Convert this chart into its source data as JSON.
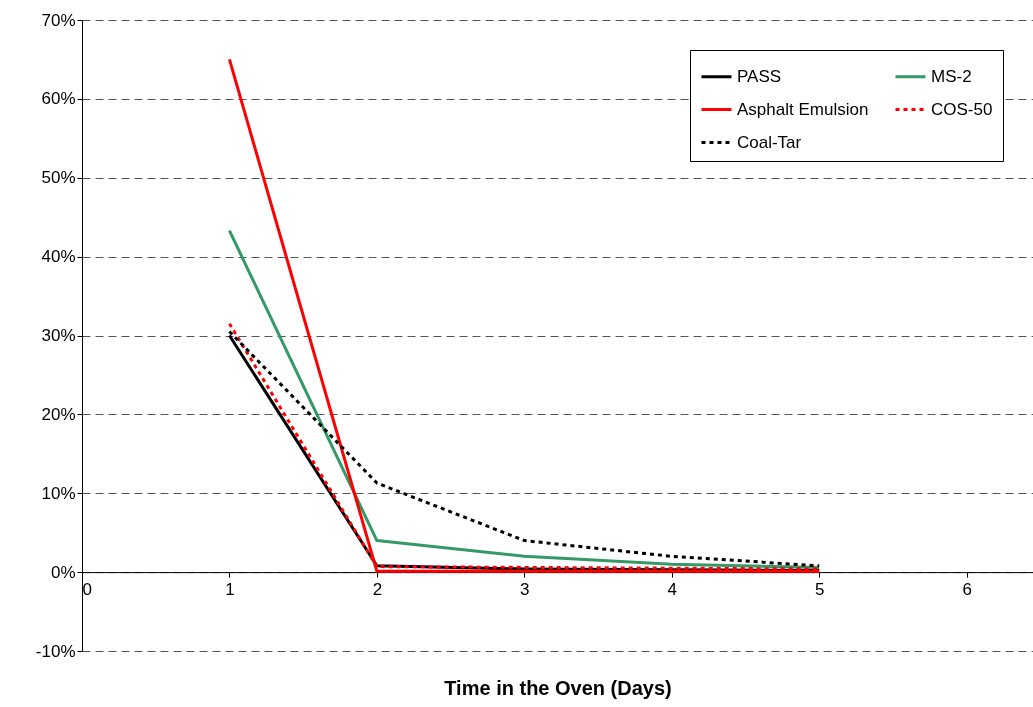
{
  "chart_data": {
    "type": "line",
    "xlabel": "Time in the Oven (Days)",
    "x": [
      1,
      2,
      3,
      4,
      5
    ],
    "series": [
      {
        "name": "PASS",
        "color": "#000000",
        "line_style": "solid",
        "values": [
          30,
          0.8,
          0.4,
          0.3,
          0.2
        ]
      },
      {
        "name": "MS-2",
        "color": "#339966",
        "line_style": "solid",
        "values": [
          43.3,
          4,
          2,
          1,
          0.6
        ]
      },
      {
        "name": "Asphalt Emulsion",
        "color": "#ff0000",
        "line_style": "solid",
        "values": [
          65,
          0.1,
          0.1,
          0.1,
          0.1
        ]
      },
      {
        "name": "COS-50",
        "color": "#ff0000",
        "line_style": "dotted",
        "values": [
          31.5,
          0.7,
          0.6,
          0.5,
          0.4
        ]
      },
      {
        "name": "Coal-Tar",
        "color": "#000000",
        "line_style": "dotted",
        "values": [
          30.5,
          11.3,
          4,
          2,
          0.8
        ]
      }
    ],
    "xlim": [
      0,
      6.45
    ],
    "xticks": [
      0,
      1,
      2,
      3,
      4,
      5,
      6
    ],
    "ylim": [
      -10,
      70
    ],
    "yticks": [
      {
        "value": -10,
        "label": "-10%"
      },
      {
        "value": 0,
        "label": "0%"
      },
      {
        "value": 10,
        "label": "10%"
      },
      {
        "value": 20,
        "label": "20%"
      },
      {
        "value": 30,
        "label": "30%"
      },
      {
        "value": 40,
        "label": "40%"
      },
      {
        "value": 50,
        "label": "50%"
      },
      {
        "value": 60,
        "label": "60%"
      },
      {
        "value": 70,
        "label": "70%"
      }
    ],
    "grid": "y",
    "legend": "top right",
    "marker": "none"
  }
}
